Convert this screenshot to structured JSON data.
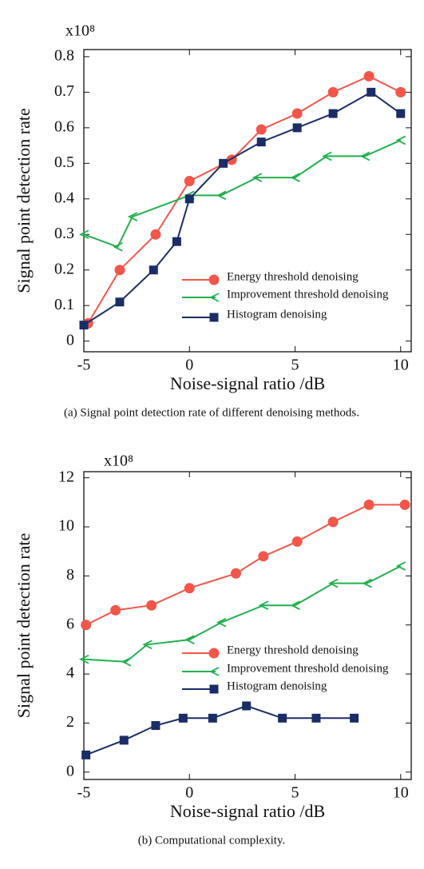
{
  "chart_data": [
    {
      "type": "line",
      "caption": "(a)  Signal point detection rate of different denoising methods.",
      "scale_note": "x10⁸",
      "x_label": "Noise-signal ratio /dB",
      "y_label": "Signal point detection rate",
      "xlim": [
        -5,
        10.5
      ],
      "xticks": [
        -5,
        0,
        5,
        10
      ],
      "ylim": [
        -0.03,
        0.82
      ],
      "yticks": [
        0,
        0.1,
        0.2,
        0.3,
        0.4,
        0.5,
        0.6,
        0.7,
        0.8
      ],
      "series": [
        {
          "name": "Energy threshold denoising",
          "color": "#f2564a",
          "marker": "circle",
          "x": [
            -4.8,
            -3.3,
            -1.6,
            0,
            2,
            3.4,
            5.1,
            6.8,
            8.5,
            10
          ],
          "values": [
            0.05,
            0.2,
            0.3,
            0.45,
            0.51,
            0.595,
            0.64,
            0.7,
            0.745,
            0.7
          ]
        },
        {
          "name": "Improvement threshold denoising",
          "color": "#22b04e",
          "marker": "chevron",
          "x": [
            -5,
            -3.4,
            -2.7,
            0,
            1.5,
            3.2,
            5,
            6.5,
            8.3,
            10
          ],
          "values": [
            0.3,
            0.265,
            0.35,
            0.41,
            0.41,
            0.46,
            0.46,
            0.52,
            0.52,
            0.565
          ]
        },
        {
          "name": "Histogram denoising",
          "color": "#1b2d66",
          "marker": "square",
          "x": [
            -5,
            -3.3,
            -1.7,
            -0.6,
            0,
            1.6,
            3.4,
            5.1,
            6.8,
            8.6,
            10
          ],
          "values": [
            0.045,
            0.11,
            0.2,
            0.28,
            0.4,
            0.5,
            0.56,
            0.6,
            0.64,
            0.7,
            0.64
          ]
        }
      ]
    },
    {
      "type": "line",
      "caption": "(b)  Computational complexity.",
      "scale_note": "x10⁸",
      "x_label": "Noise-signal ratio /dB",
      "y_label": "Signal point detection rate",
      "xlim": [
        -5,
        10.5
      ],
      "xticks": [
        -5,
        0,
        5,
        10
      ],
      "ylim": [
        -0.3,
        12.25
      ],
      "yticks": [
        0,
        2,
        4,
        6,
        8,
        10,
        12
      ],
      "series": [
        {
          "name": "Energy threshold denoising",
          "color": "#f2564a",
          "marker": "circle",
          "x": [
            -4.9,
            -3.5,
            -1.8,
            0,
            2.2,
            3.5,
            5.1,
            6.8,
            8.5,
            10.2
          ],
          "values": [
            6,
            6.6,
            6.8,
            7.5,
            8.1,
            8.8,
            9.4,
            10.2,
            10.9,
            10.9
          ]
        },
        {
          "name": "Improvement threshold denoising",
          "color": "#22b04e",
          "marker": "chevron",
          "x": [
            -5,
            -3,
            -2,
            0,
            1.5,
            3.5,
            5,
            6.8,
            8.4,
            10
          ],
          "values": [
            4.6,
            4.5,
            5.2,
            5.4,
            6.1,
            6.8,
            6.8,
            7.7,
            7.7,
            8.4
          ]
        },
        {
          "name": "Histogram denoising",
          "color": "#1b2d66",
          "marker": "square",
          "x": [
            -4.9,
            -3.1,
            -1.6,
            -0.3,
            1.1,
            2.7,
            4.4,
            6,
            7.8
          ],
          "values": [
            0.7,
            1.3,
            1.9,
            2.2,
            2.2,
            2.7,
            2.2,
            2.2,
            2.2
          ]
        }
      ]
    }
  ]
}
